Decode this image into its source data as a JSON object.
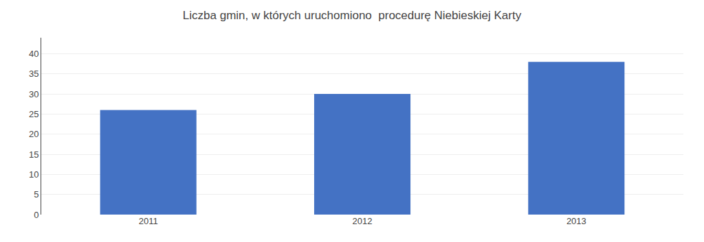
{
  "chart_data": {
    "type": "bar",
    "title": "Liczba gmin, w których uruchomiono  procedurę Niebieskiej Karty",
    "categories": [
      "2011",
      "2012",
      "2013"
    ],
    "values": [
      26,
      30,
      38
    ],
    "color": "#4472C4",
    "ylim": [
      0,
      44
    ],
    "yticks": [
      0,
      5,
      10,
      15,
      20,
      25,
      30,
      35,
      40
    ],
    "grid": true
  }
}
